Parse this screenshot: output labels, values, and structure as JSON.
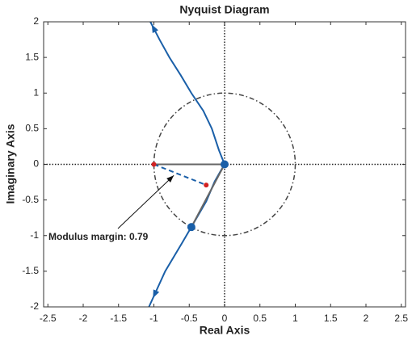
{
  "chart_data": {
    "type": "line",
    "title": "Nyquist Diagram",
    "xlabel": "Real Axis",
    "ylabel": "Imaginary Axis",
    "xlim": [
      -2.56,
      2.56
    ],
    "ylim": [
      -2,
      2
    ],
    "xticks": [
      -2.5,
      -2,
      -1.5,
      -1,
      -0.5,
      0,
      0.5,
      1,
      1.5,
      2,
      2.5
    ],
    "yticks": [
      -2,
      -1.5,
      -1,
      -0.5,
      0,
      0.5,
      1,
      1.5,
      2
    ],
    "zero_lines": true,
    "reference_circle": {
      "radius": 1,
      "color": "#444444"
    },
    "series": [
      {
        "color": "#1a5fa8",
        "style": "solid",
        "width": 2,
        "arrow": true,
        "x": [
          0,
          -0.08,
          -0.18,
          -0.3,
          -0.47,
          -0.62,
          -0.78,
          -0.92,
          -1.05
        ],
        "y": [
          0,
          0.2,
          0.5,
          0.75,
          1.0,
          1.25,
          1.5,
          1.75,
          2
        ]
      },
      {
        "color": "#1a5fa8",
        "style": "solid",
        "width": 2,
        "arrow": true,
        "x": [
          0,
          -0.06,
          -0.14,
          -0.26,
          -0.47,
          -0.6,
          -0.84,
          -1.07
        ],
        "y": [
          0,
          -0.1,
          -0.24,
          -0.52,
          -0.88,
          -1.1,
          -1.5,
          -2
        ]
      },
      {
        "color": "#666666",
        "style": "solid",
        "width": 2,
        "arrow": false,
        "x": [
          -1,
          0
        ],
        "y": [
          0,
          0
        ]
      },
      {
        "color": "#666666",
        "style": "solid",
        "width": 2,
        "arrow": false,
        "x": [
          0,
          -0.47
        ],
        "y": [
          0,
          -0.88
        ]
      },
      {
        "color": "#1a5fa8",
        "style": "dashed",
        "width": 2,
        "arrow": false,
        "x": [
          -1,
          -0.26
        ],
        "y": [
          0,
          -0.29
        ]
      }
    ],
    "markers": [
      {
        "x": 0,
        "y": 0,
        "color": "#1a5fa8",
        "size": 5
      },
      {
        "x": -0.47,
        "y": -0.88,
        "color": "#1a5fa8",
        "size": 5
      },
      {
        "x": -1,
        "y": 0,
        "color": "#d22222",
        "size": 3
      },
      {
        "x": -0.26,
        "y": -0.29,
        "color": "#d22222",
        "size": 3
      }
    ],
    "annotation": {
      "text": "Modulus margin: 0.79"
    }
  }
}
